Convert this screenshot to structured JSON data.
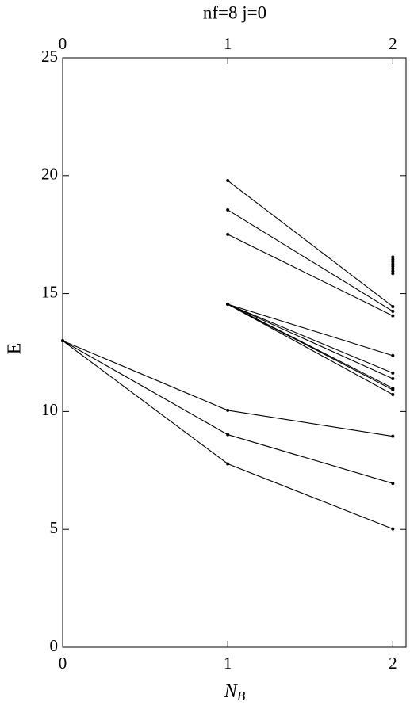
{
  "chart_data": {
    "type": "line",
    "title": "nf=8   j=0",
    "xlabel": {
      "main": "N",
      "sub": "B"
    },
    "ylabel": "E",
    "xlim": [
      0,
      2.08
    ],
    "ylim": [
      0,
      25
    ],
    "xticks": [
      0,
      1,
      2
    ],
    "x2ticks": [
      0,
      1,
      2
    ],
    "yticks": [
      0,
      5,
      10,
      15,
      20,
      25
    ],
    "color": "#000000",
    "series": [
      {
        "x": [
          0,
          1,
          2
        ],
        "values": [
          13,
          10.05,
          8.95
        ]
      },
      {
        "x": [
          0,
          1,
          2
        ],
        "values": [
          13,
          9.02,
          6.95
        ]
      },
      {
        "x": [
          0,
          1,
          2
        ],
        "values": [
          13,
          7.78,
          5.02
        ]
      },
      {
        "x": [
          1,
          2
        ],
        "values": [
          19.79,
          14.45
        ]
      },
      {
        "x": [
          1,
          2
        ],
        "values": [
          18.55,
          14.25
        ]
      },
      {
        "x": [
          1,
          2
        ],
        "values": [
          17.51,
          14.06
        ]
      },
      {
        "x": [
          1,
          2
        ],
        "values": [
          14.55,
          12.37
        ]
      },
      {
        "x": [
          1,
          2
        ],
        "values": [
          14.55,
          11.63
        ]
      },
      {
        "x": [
          1,
          2
        ],
        "values": [
          14.55,
          11.39
        ]
      },
      {
        "x": [
          1,
          2
        ],
        "values": [
          14.55,
          10.99
        ]
      },
      {
        "x": [
          1,
          2
        ],
        "values": [
          14.55,
          10.92
        ]
      },
      {
        "x": [
          1,
          2
        ],
        "values": [
          14.55,
          10.72
        ]
      },
      {
        "x": [
          2,
          2,
          2,
          2,
          2,
          2,
          2,
          2
        ],
        "values": [
          16.55,
          16.45,
          16.35,
          16.25,
          16.15,
          16.05,
          15.95,
          15.85
        ],
        "markers_only": true
      }
    ]
  }
}
